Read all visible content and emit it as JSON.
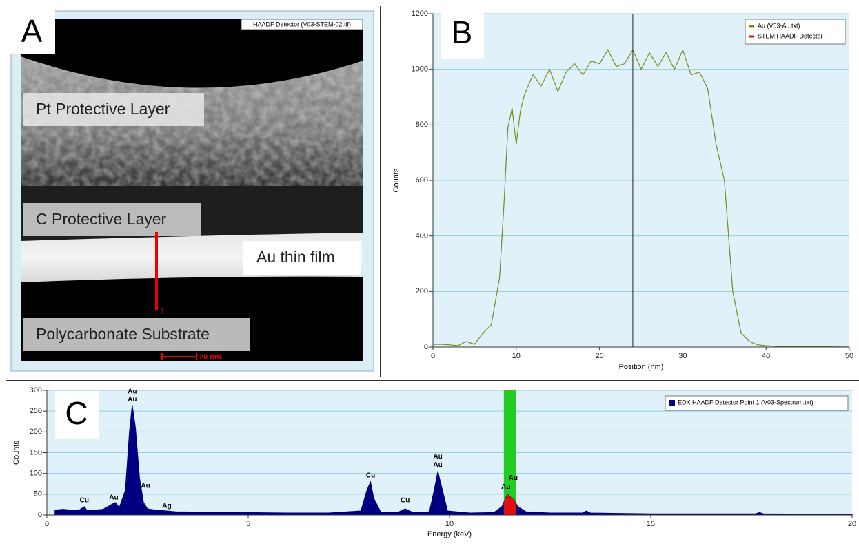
{
  "panels": [
    "A",
    "B",
    "C"
  ],
  "image": {
    "detector_label": "HAADF Detector (V03-STEM-02.tif)",
    "labels": [
      "Pt Protective Layer",
      "C Protective Layer",
      "Au thin film",
      "Polycarbonate Substrate"
    ],
    "profile_label": "1",
    "scale_bar": "20 nm"
  },
  "chart_data": [
    {
      "type": "line",
      "xlabel": "Position (nm)",
      "ylabel": "Counts",
      "xlim": [
        0,
        50
      ],
      "ylim": [
        0,
        1200
      ],
      "xticks": [
        0,
        10,
        20,
        30,
        40,
        50
      ],
      "yticks": [
        0,
        200,
        400,
        600,
        800,
        1000,
        1200
      ],
      "grid": true,
      "legend": "upper right",
      "marker_x": 24,
      "x": [
        0,
        1,
        2,
        3,
        4,
        5,
        6,
        7,
        8,
        8.5,
        9,
        9.5,
        10,
        10.5,
        11,
        12,
        13,
        14,
        15,
        16,
        17,
        18,
        19,
        20,
        21,
        22,
        23,
        24,
        25,
        26,
        27,
        28,
        29,
        30,
        31,
        32,
        33,
        34,
        35,
        35.5,
        36,
        37,
        38,
        39,
        40,
        41,
        42,
        44,
        46,
        48,
        50
      ],
      "series": [
        {
          "name": "Au (V03-Au.txt)",
          "color": "#7a8a1a",
          "values": [
            10,
            10,
            8,
            5,
            20,
            10,
            50,
            80,
            250,
            500,
            790,
            860,
            730,
            850,
            910,
            980,
            940,
            1000,
            920,
            990,
            1020,
            980,
            1030,
            1020,
            1070,
            1010,
            1020,
            1070,
            1000,
            1060,
            1010,
            1060,
            1000,
            1070,
            980,
            990,
            930,
            730,
            600,
            400,
            200,
            50,
            20,
            8,
            5,
            3,
            2,
            3,
            2,
            1,
            0
          ]
        },
        {
          "name": "STEM HAADF Detector",
          "color": "#e01010"
        }
      ]
    },
    {
      "type": "area",
      "xlabel": "Energy (keV)",
      "ylabel": "Counts",
      "xlim": [
        0,
        20
      ],
      "ylim": [
        0,
        300
      ],
      "xticks": [
        0,
        5,
        10,
        15,
        20
      ],
      "yticks": [
        0,
        50,
        100,
        150,
        200,
        250,
        300
      ],
      "grid": true,
      "legend": "upper right",
      "highlight": {
        "xlim": [
          11.35,
          11.65
        ],
        "color": "#22cc22",
        "fill": "#e01010"
      },
      "x": [
        0.2,
        0.4,
        0.6,
        0.8,
        0.93,
        1.0,
        1.2,
        1.4,
        1.6,
        1.7,
        1.8,
        1.95,
        2.05,
        2.12,
        2.2,
        2.3,
        2.4,
        2.5,
        2.7,
        2.98,
        3.2,
        4,
        5,
        6,
        7,
        7.8,
        7.95,
        8.04,
        8.12,
        8.3,
        8.7,
        8.9,
        9.1,
        9.5,
        9.62,
        9.71,
        9.8,
        9.95,
        10.5,
        11.1,
        11.3,
        11.44,
        11.52,
        11.58,
        11.7,
        11.9,
        12.5,
        13.3,
        13.4,
        13.5,
        15,
        17.6,
        17.7,
        17.8,
        19,
        20
      ],
      "series": [
        {
          "name": "EDX HAADF Detector Point 1 (V03-Spectrum.txt)",
          "color": "#000080",
          "values": [
            12,
            14,
            12,
            12,
            20,
            11,
            12,
            14,
            25,
            30,
            18,
            60,
            200,
            265,
            210,
            90,
            30,
            15,
            12,
            10,
            8,
            7,
            6,
            5,
            5,
            10,
            60,
            80,
            40,
            6,
            6,
            15,
            6,
            8,
            60,
            105,
            70,
            10,
            5,
            6,
            20,
            50,
            42,
            40,
            20,
            8,
            5,
            5,
            10,
            5,
            3,
            3,
            6,
            3,
            2,
            2
          ]
        }
      ],
      "annotations": [
        {
          "text": "Cu",
          "x": 0.93,
          "y": 35
        },
        {
          "text": "Au",
          "x": 1.66,
          "y": 42
        },
        {
          "text": "Au",
          "x": 2.12,
          "y": 297
        },
        {
          "text": "Au",
          "x": 2.12,
          "y": 278
        },
        {
          "text": "Au",
          "x": 2.45,
          "y": 70
        },
        {
          "text": "Ag",
          "x": 2.98,
          "y": 22
        },
        {
          "text": "Cu",
          "x": 8.04,
          "y": 95
        },
        {
          "text": "Cu",
          "x": 8.9,
          "y": 35
        },
        {
          "text": "Au",
          "x": 9.71,
          "y": 140
        },
        {
          "text": "Au",
          "x": 9.71,
          "y": 120
        },
        {
          "text": "Au",
          "x": 11.4,
          "y": 67
        },
        {
          "text": "Au",
          "x": 11.58,
          "y": 89
        }
      ]
    }
  ]
}
